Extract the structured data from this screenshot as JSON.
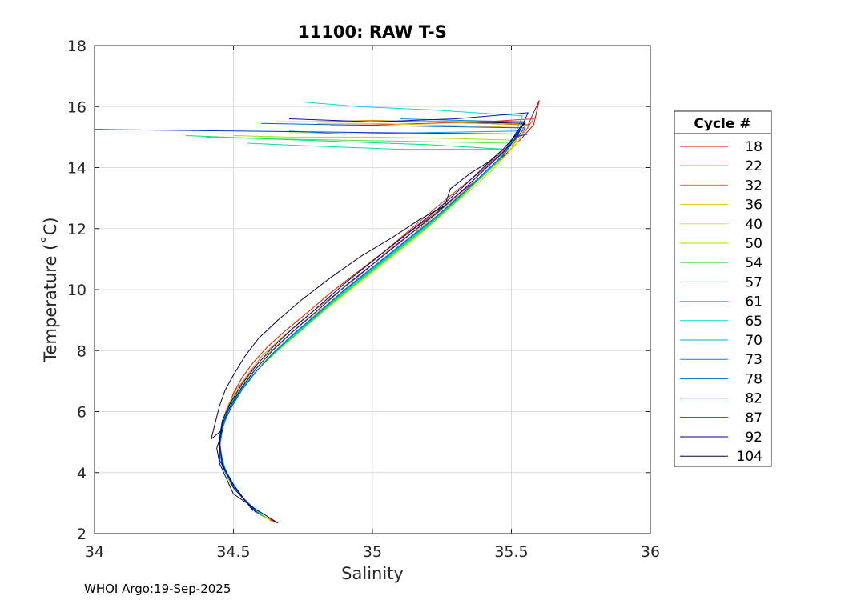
{
  "footer": "WHOI Argo:19-Sep-2025",
  "chart_data": {
    "type": "line",
    "title": "11100: RAW T-S",
    "xlabel": "Salinity",
    "ylabel": "Temperature (˚C)",
    "xlim": [
      34,
      36
    ],
    "ylim": [
      2,
      18
    ],
    "xticks": [
      34,
      34.5,
      35,
      35.5,
      36
    ],
    "xtick_labels": [
      "34",
      "34.5",
      "35",
      "35.5",
      "36"
    ],
    "yticks": [
      2,
      4,
      6,
      8,
      10,
      12,
      14,
      16,
      18
    ],
    "ytick_labels": [
      "2",
      "4",
      "6",
      "8",
      "10",
      "12",
      "14",
      "16",
      "18"
    ],
    "grid": true,
    "legend": {
      "title": "Cycle #",
      "placement": "outside-right"
    },
    "series": [
      {
        "name": "18",
        "color": "#d40000",
        "x": [
          34.66,
          34.62,
          34.55,
          34.5,
          34.48,
          34.46,
          34.45,
          34.46,
          34.48,
          34.5,
          34.53,
          34.57,
          34.62,
          34.68,
          34.76,
          34.85,
          34.95,
          35.05,
          35.15,
          35.24,
          35.32,
          35.39,
          35.45,
          35.5,
          35.54,
          35.58,
          35.6,
          35.56,
          35.4,
          35.2,
          35.0,
          34.8
        ],
        "y": [
          2.35,
          2.5,
          3.0,
          3.5,
          3.85,
          4.3,
          5.0,
          5.6,
          6.1,
          6.6,
          7.1,
          7.6,
          8.1,
          8.6,
          9.2,
          9.9,
          10.6,
          11.3,
          12.0,
          12.6,
          13.2,
          13.7,
          14.2,
          14.6,
          15.0,
          15.4,
          16.2,
          15.4,
          15.45,
          15.5,
          15.5,
          15.5
        ]
      },
      {
        "name": "22",
        "color": "#e03010",
        "x": [
          34.65,
          34.6,
          34.53,
          34.48,
          34.46,
          34.45,
          34.46,
          34.48,
          34.5,
          34.53,
          34.57,
          34.62,
          34.68,
          34.76,
          34.85,
          34.95,
          35.05,
          35.14,
          35.23,
          35.31,
          35.38,
          35.44,
          35.5,
          35.55,
          35.58,
          35.4,
          35.2,
          35.0,
          34.85
        ],
        "y": [
          2.4,
          2.6,
          3.2,
          3.8,
          4.4,
          5.0,
          5.6,
          6.1,
          6.6,
          7.1,
          7.6,
          8.1,
          8.6,
          9.2,
          9.9,
          10.6,
          11.3,
          12.0,
          12.7,
          13.3,
          13.8,
          14.3,
          14.8,
          15.2,
          15.6,
          15.5,
          15.45,
          15.4,
          15.4
        ]
      },
      {
        "name": "32",
        "color": "#d08a00",
        "x": [
          34.64,
          34.58,
          34.51,
          34.47,
          34.45,
          34.45,
          34.46,
          34.48,
          34.51,
          34.55,
          34.6,
          34.67,
          34.76,
          34.86,
          34.96,
          35.06,
          35.16,
          35.25,
          35.33,
          35.4,
          35.46,
          35.51,
          35.55,
          35.4,
          35.2,
          35.0,
          34.8,
          34.65
        ],
        "y": [
          2.4,
          2.7,
          3.4,
          4.0,
          4.6,
          5.2,
          5.7,
          6.2,
          6.7,
          7.2,
          7.8,
          8.4,
          9.1,
          9.8,
          10.5,
          11.3,
          12.0,
          12.7,
          13.3,
          13.9,
          14.4,
          14.8,
          15.4,
          15.45,
          15.5,
          15.55,
          15.5,
          15.5
        ]
      },
      {
        "name": "36",
        "color": "#e8c000",
        "x": [
          34.63,
          34.57,
          34.5,
          34.46,
          34.45,
          34.45,
          34.47,
          34.5,
          34.54,
          34.59,
          34.66,
          34.75,
          34.85,
          34.96,
          35.07,
          35.17,
          35.26,
          35.34,
          35.41,
          35.47,
          35.52,
          35.55,
          35.4,
          35.2,
          35.0,
          34.8
        ],
        "y": [
          2.45,
          2.8,
          3.5,
          4.2,
          4.8,
          5.3,
          5.9,
          6.5,
          7.0,
          7.6,
          8.2,
          8.9,
          9.6,
          10.4,
          11.2,
          12.0,
          12.7,
          13.3,
          13.9,
          14.4,
          14.8,
          15.3,
          15.35,
          15.4,
          15.45,
          15.45
        ]
      },
      {
        "name": "40",
        "color": "#e6e600",
        "x": [
          34.63,
          34.56,
          34.49,
          34.46,
          34.45,
          34.46,
          34.48,
          34.52,
          34.57,
          34.64,
          34.73,
          34.84,
          34.95,
          35.06,
          35.17,
          35.27,
          35.35,
          35.42,
          35.48,
          35.52,
          35.54,
          35.3,
          35.0,
          34.7
        ],
        "y": [
          2.45,
          2.9,
          3.6,
          4.3,
          4.9,
          5.5,
          6.1,
          6.7,
          7.3,
          7.9,
          8.6,
          9.4,
          10.2,
          11.0,
          11.8,
          12.6,
          13.3,
          13.9,
          14.4,
          14.8,
          15.1,
          15.1,
          15.1,
          15.15
        ]
      },
      {
        "name": "50",
        "color": "#9ae600",
        "x": [
          34.62,
          34.55,
          34.49,
          34.46,
          34.45,
          34.46,
          34.49,
          34.53,
          34.59,
          34.66,
          34.75,
          34.85,
          34.96,
          35.07,
          35.18,
          35.28,
          35.37,
          35.44,
          35.49,
          35.52,
          35.3,
          35.0,
          34.7,
          34.5
        ],
        "y": [
          2.5,
          3.0,
          3.7,
          4.4,
          5.0,
          5.6,
          6.2,
          6.8,
          7.4,
          8.0,
          8.7,
          9.5,
          10.3,
          11.1,
          11.9,
          12.7,
          13.4,
          14.0,
          14.5,
          14.9,
          14.95,
          15.0,
          15.0,
          15.05
        ]
      },
      {
        "name": "54",
        "color": "#50e050",
        "x": [
          34.62,
          34.55,
          34.48,
          34.45,
          34.45,
          34.46,
          34.49,
          34.54,
          34.6,
          34.67,
          34.76,
          34.86,
          34.97,
          35.08,
          35.19,
          35.29,
          35.37,
          35.44,
          35.48,
          35.5,
          35.2,
          34.9,
          34.6,
          34.4
        ],
        "y": [
          2.5,
          3.0,
          3.8,
          4.5,
          5.1,
          5.7,
          6.3,
          6.9,
          7.5,
          8.1,
          8.8,
          9.6,
          10.4,
          11.2,
          12.0,
          12.8,
          13.5,
          14.1,
          14.5,
          14.8,
          14.85,
          14.9,
          14.95,
          15.0
        ]
      },
      {
        "name": "57",
        "color": "#00e070",
        "x": [
          34.61,
          34.54,
          34.48,
          34.45,
          34.45,
          34.47,
          34.5,
          34.55,
          34.61,
          34.68,
          34.77,
          34.87,
          34.98,
          35.09,
          35.2,
          35.3,
          35.38,
          35.44,
          35.48,
          35.2,
          34.9,
          34.6,
          34.33
        ],
        "y": [
          2.55,
          3.1,
          3.9,
          4.6,
          5.2,
          5.8,
          6.4,
          7.0,
          7.6,
          8.2,
          8.9,
          9.7,
          10.5,
          11.3,
          12.1,
          12.9,
          13.6,
          14.1,
          14.6,
          14.75,
          14.85,
          14.95,
          15.05
        ]
      },
      {
        "name": "61",
        "color": "#00e0b0",
        "x": [
          34.6,
          34.53,
          34.47,
          34.45,
          34.45,
          34.47,
          34.51,
          34.56,
          34.62,
          34.69,
          34.78,
          34.88,
          34.99,
          35.1,
          35.21,
          35.31,
          35.39,
          35.45,
          35.48,
          35.1,
          34.8,
          34.55
        ],
        "y": [
          2.6,
          3.2,
          4.0,
          4.7,
          5.3,
          5.9,
          6.5,
          7.1,
          7.7,
          8.3,
          9.0,
          9.8,
          10.6,
          11.4,
          12.2,
          13.0,
          13.7,
          14.2,
          14.6,
          14.6,
          14.7,
          14.8
        ]
      },
      {
        "name": "65",
        "color": "#00d8e0",
        "x": [
          34.6,
          34.52,
          34.47,
          34.45,
          34.46,
          34.48,
          34.52,
          34.57,
          34.63,
          34.7,
          34.79,
          34.89,
          35.0,
          35.11,
          35.22,
          35.32,
          35.4,
          35.46,
          35.5,
          35.54,
          35.2,
          34.95,
          34.75
        ],
        "y": [
          2.6,
          3.3,
          4.1,
          4.8,
          5.4,
          6.0,
          6.6,
          7.2,
          7.8,
          8.4,
          9.1,
          9.9,
          10.7,
          11.5,
          12.3,
          13.1,
          13.8,
          14.3,
          14.8,
          15.7,
          15.9,
          16.0,
          16.15
        ]
      },
      {
        "name": "70",
        "color": "#00a8e8",
        "x": [
          34.6,
          34.52,
          34.47,
          34.45,
          34.46,
          34.48,
          34.52,
          34.57,
          34.63,
          34.7,
          34.79,
          34.89,
          35.0,
          35.11,
          35.22,
          35.32,
          35.4,
          35.46,
          35.5,
          35.53,
          35.2,
          34.9,
          34.7
        ],
        "y": [
          2.6,
          3.3,
          4.1,
          4.8,
          5.4,
          6.0,
          6.6,
          7.2,
          7.8,
          8.4,
          9.1,
          9.9,
          10.7,
          11.5,
          12.3,
          13.1,
          13.8,
          14.3,
          14.8,
          15.2,
          15.15,
          15.1,
          15.2
        ]
      },
      {
        "name": "73",
        "color": "#0090d0",
        "x": [
          34.59,
          34.51,
          34.46,
          34.45,
          34.46,
          34.49,
          34.53,
          34.58,
          34.64,
          34.71,
          34.8,
          34.9,
          35.01,
          35.12,
          35.23,
          35.33,
          35.41,
          35.47,
          35.51,
          35.54,
          35.3,
          35.1
        ],
        "y": [
          2.65,
          3.4,
          4.2,
          4.9,
          5.5,
          6.1,
          6.7,
          7.3,
          7.9,
          8.5,
          9.2,
          10.0,
          10.8,
          11.6,
          12.4,
          13.2,
          13.9,
          14.4,
          14.9,
          15.5,
          15.55,
          15.6
        ]
      },
      {
        "name": "78",
        "color": "#0060c8",
        "x": [
          34.59,
          34.51,
          34.46,
          34.45,
          34.46,
          34.49,
          34.53,
          34.58,
          34.64,
          34.71,
          34.8,
          34.9,
          35.01,
          35.12,
          35.23,
          35.33,
          35.41,
          35.47,
          35.51,
          35.55,
          35.2,
          34.9,
          34.6
        ],
        "y": [
          2.65,
          3.4,
          4.2,
          4.9,
          5.5,
          6.1,
          6.7,
          7.3,
          7.9,
          8.5,
          9.2,
          10.0,
          10.8,
          11.6,
          12.4,
          13.2,
          13.9,
          14.4,
          14.9,
          15.3,
          15.35,
          15.4,
          15.45
        ]
      },
      {
        "name": "82",
        "color": "#0030d8",
        "x": [
          34.58,
          34.5,
          34.46,
          34.45,
          34.46,
          34.49,
          34.53,
          34.58,
          34.64,
          34.71,
          34.8,
          34.9,
          35.01,
          35.12,
          35.23,
          35.33,
          35.41,
          35.47,
          35.51,
          35.56,
          35.0,
          34.5,
          34.0
        ],
        "y": [
          2.7,
          3.5,
          4.3,
          5.0,
          5.6,
          6.2,
          6.8,
          7.4,
          8.0,
          8.6,
          9.3,
          10.1,
          10.9,
          11.7,
          12.5,
          13.3,
          14.0,
          14.5,
          15.0,
          15.1,
          15.15,
          15.2,
          15.25
        ]
      },
      {
        "name": "87",
        "color": "#1010b0",
        "x": [
          34.58,
          34.5,
          34.46,
          34.45,
          34.46,
          34.49,
          34.53,
          34.58,
          34.64,
          34.71,
          34.8,
          34.9,
          35.01,
          35.12,
          35.23,
          35.33,
          35.41,
          35.47,
          35.52,
          35.56,
          35.3,
          35.0,
          34.7
        ],
        "y": [
          2.7,
          3.5,
          4.3,
          5.0,
          5.6,
          6.2,
          6.8,
          7.4,
          8.0,
          8.6,
          9.3,
          10.1,
          10.9,
          11.7,
          12.5,
          13.3,
          14.0,
          14.5,
          15.0,
          15.8,
          15.6,
          15.5,
          15.6
        ]
      },
      {
        "name": "92",
        "color": "#000080",
        "x": [
          34.57,
          34.5,
          34.45,
          34.45,
          34.46,
          34.49,
          34.53,
          34.58,
          34.64,
          34.71,
          34.8,
          34.9,
          35.01,
          35.12,
          35.23,
          35.33,
          35.41,
          35.47,
          35.52,
          35.55,
          35.4,
          35.2
        ],
        "y": [
          2.75,
          3.6,
          4.4,
          5.1,
          5.7,
          6.3,
          6.9,
          7.5,
          8.1,
          8.7,
          9.4,
          10.2,
          11.0,
          11.8,
          12.6,
          13.4,
          14.1,
          14.6,
          15.1,
          15.5,
          15.5,
          15.5
        ]
      },
      {
        "name": "104",
        "color": "#000040",
        "x": [
          34.66,
          34.58,
          34.5,
          34.45,
          34.44,
          34.46,
          34.42,
          34.45,
          34.47,
          34.5,
          34.54,
          34.59,
          34.66,
          34.75,
          34.85,
          34.96,
          35.07,
          35.17,
          35.26,
          35.28,
          35.35,
          35.42,
          35.47,
          35.5,
          35.53,
          35.55,
          35.3,
          35.0
        ],
        "y": [
          2.35,
          2.8,
          3.3,
          4.3,
          4.8,
          5.4,
          5.1,
          6.2,
          6.7,
          7.2,
          7.8,
          8.4,
          9.0,
          9.7,
          10.4,
          11.1,
          11.7,
          12.3,
          12.75,
          13.3,
          13.8,
          14.2,
          14.6,
          14.9,
          15.3,
          15.45,
          15.5,
          15.5
        ]
      }
    ]
  }
}
